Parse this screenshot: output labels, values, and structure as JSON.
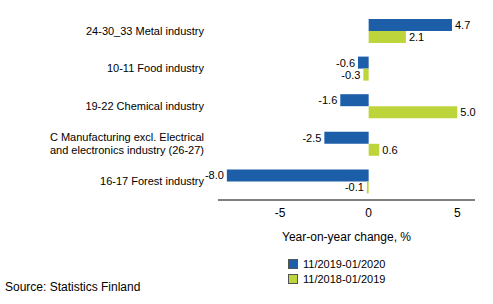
{
  "chart_data": {
    "type": "bar",
    "orientation": "horizontal",
    "categories": [
      "24-30_33 Metal industry",
      "10-11 Food industry",
      "19-22 Chemical industry",
      "C Manufacturing excl. Electrical and electronics industry (26-27)",
      "16-17 Forest industry"
    ],
    "series": [
      {
        "name": "11/2019-01/2020",
        "color": "#1c5ea8",
        "values": [
          4.7,
          -0.6,
          -1.6,
          -2.5,
          -8.0
        ],
        "value_labels": [
          "4.7",
          "-0.6",
          "-1.6",
          "-2.5",
          "-8.0"
        ]
      },
      {
        "name": "11/2018-01/2019",
        "color": "#bdd53b",
        "values": [
          2.1,
          -0.3,
          5.0,
          0.6,
          -0.1
        ],
        "value_labels": [
          "2.1",
          "-0.3",
          "5.0",
          "0.6",
          "-0.1"
        ]
      }
    ],
    "xlabel": "Year-on-year change, %",
    "xlim": [
      -8.5,
      6
    ],
    "xticks": [
      -5,
      0,
      5
    ],
    "data_labels": true,
    "legend": "bottom",
    "source": "Source: Statistics Finland"
  }
}
